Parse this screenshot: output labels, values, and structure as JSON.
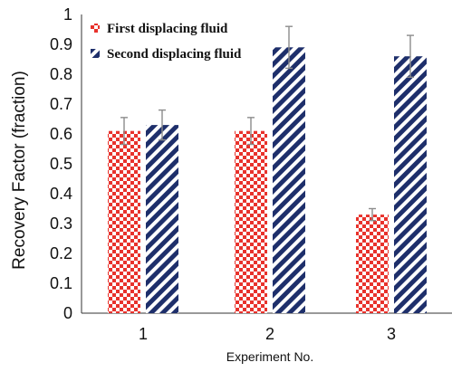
{
  "chart_data": {
    "type": "bar",
    "categories": [
      "1",
      "2",
      "3"
    ],
    "series": [
      {
        "name": "First displacing fluid",
        "values": [
          0.61,
          0.61,
          0.33
        ],
        "errors": [
          0.045,
          0.045,
          0.02
        ],
        "color": "#e8322c",
        "pattern": "checkerboard"
      },
      {
        "name": "Second displacing fluid",
        "values": [
          0.63,
          0.89,
          0.86
        ],
        "errors": [
          0.05,
          0.07,
          0.07
        ],
        "color": "#1e2f6b",
        "pattern": "diagonal-stripes"
      }
    ],
    "xlabel": "Experiment No.",
    "ylabel": "Recovery Factor (fraction)",
    "ylim": [
      0,
      1
    ],
    "yticks": [
      "0",
      "0.1",
      "0.2",
      "0.3",
      "0.4",
      "0.5",
      "0.6",
      "0.7",
      "0.8",
      "0.9",
      "1"
    ],
    "legend_position": "top-left",
    "grid": false
  }
}
